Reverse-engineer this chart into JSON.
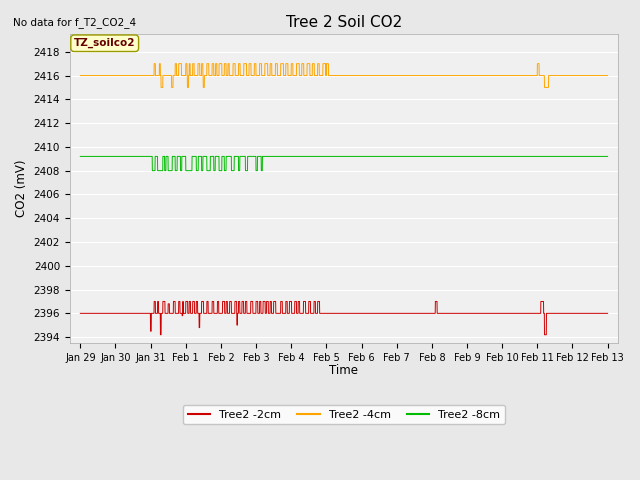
{
  "title": "Tree 2 Soil CO2",
  "no_data_text": "No data for f_T2_CO2_4",
  "ylabel": "CO2 (mV)",
  "xlabel": "Time",
  "yticks": [
    2394,
    2396,
    2398,
    2400,
    2402,
    2404,
    2406,
    2408,
    2410,
    2412,
    2414,
    2416,
    2418
  ],
  "x_tick_labels": [
    "Jan 29",
    "Jan 30",
    "Jan 31",
    "Feb 1",
    "Feb 2",
    "Feb 3",
    "Feb 4",
    "Feb 5",
    "Feb 6",
    "Feb 7",
    "Feb 8",
    "Feb 9",
    "Feb 10",
    "Feb 11",
    "Feb 12",
    "Feb 13"
  ],
  "bg_color": "#e8e8e8",
  "plot_bg_color": "#f0f0f0",
  "grid_color": "#ffffff",
  "legend_label_red": "Tree2 -2cm",
  "legend_label_orange": "Tree2 -4cm",
  "legend_label_green": "Tree2 -8cm",
  "color_red": "#cc0000",
  "color_orange": "#ffa500",
  "color_green": "#00bb00",
  "annotation_text": "TZ_soilco2",
  "red_base": 2396.0,
  "orange_base": 2416.0,
  "green_base": 2409.2,
  "red_up": 1.0,
  "red_down": -1.5,
  "orange_up": 1.0,
  "orange_down": -1.0,
  "green_dip": -1.2
}
